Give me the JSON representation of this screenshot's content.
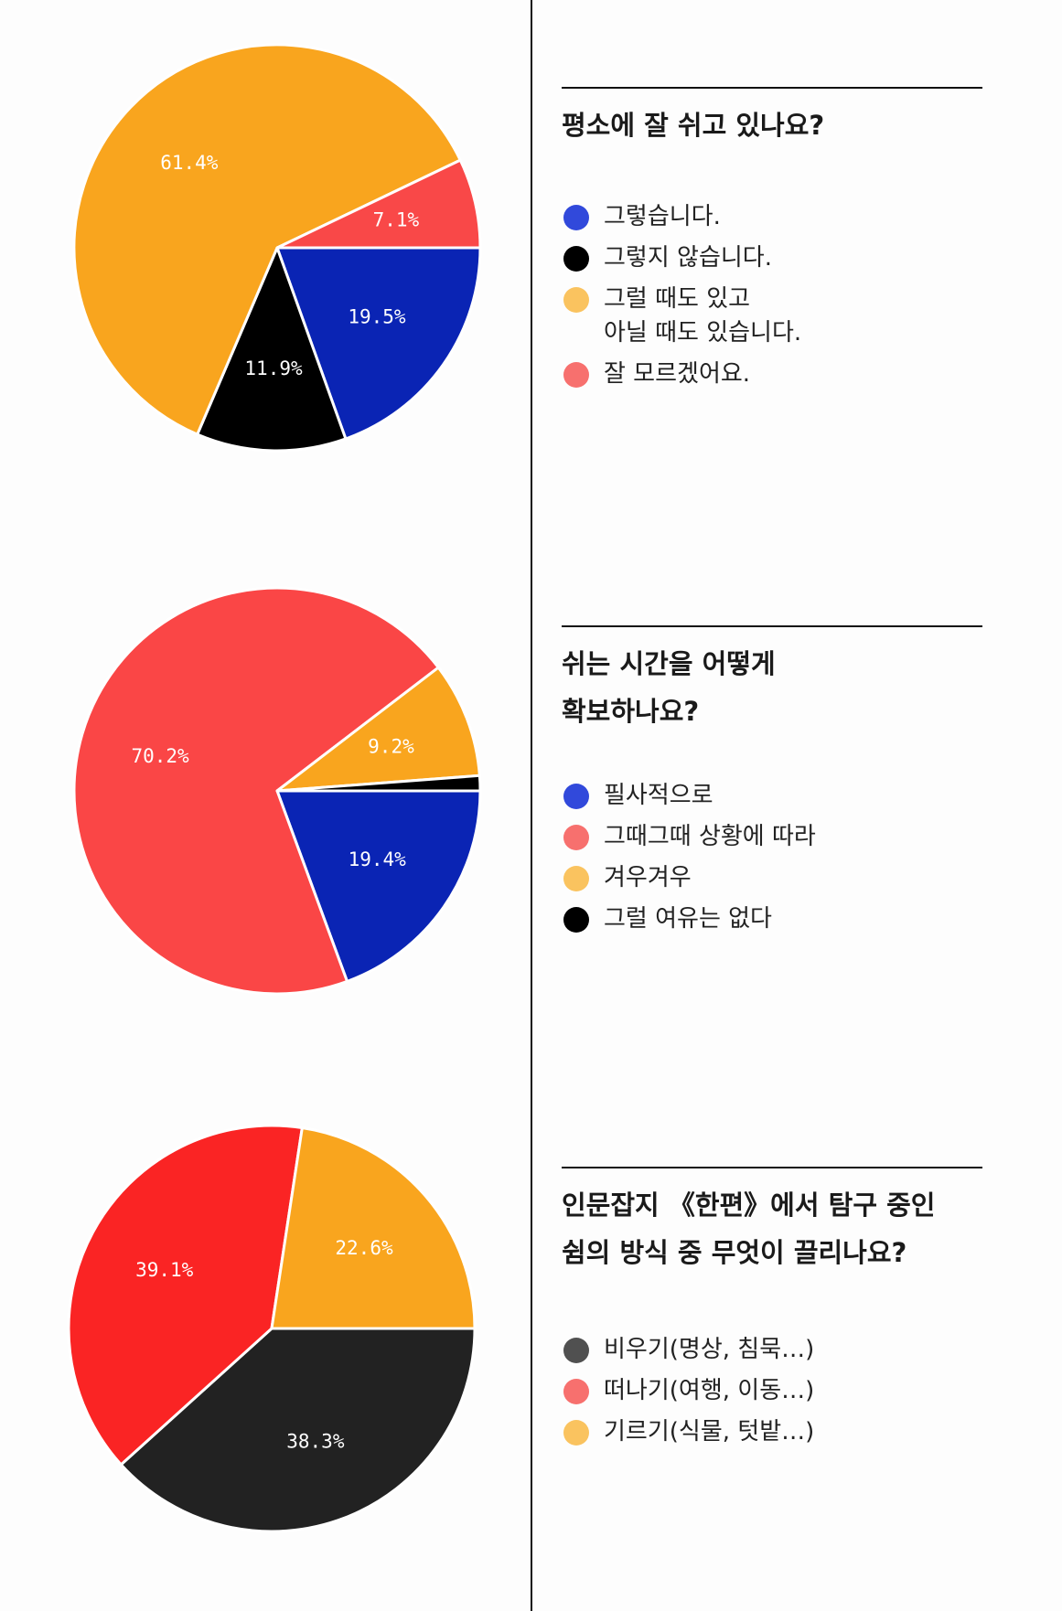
{
  "chart_data": [
    {
      "type": "pie",
      "title": "평소에 잘 쉬고 있나요?",
      "slices": [
        {
          "label": "그렇습니다.",
          "value": 19.5,
          "display": "19.5%",
          "color": "#0a24b4"
        },
        {
          "label": "그렇지 않습니다.",
          "value": 11.9,
          "display": "11.9%",
          "color": "#000000"
        },
        {
          "label": "그럴 때도 있고\n아닐 때도 있습니다.",
          "value": 61.4,
          "display": "61.4%",
          "color": "#f9a51e"
        },
        {
          "label": "잘 모르겠어요.",
          "value": 7.1,
          "display": "7.1%",
          "color": "#f94848"
        }
      ],
      "legend": [
        {
          "label": "그렇습니다.",
          "color": "#3149db"
        },
        {
          "label": "그렇지 않습니다.",
          "color": "#000000"
        },
        {
          "label": "그럴 때도 있고\n아닐 때도 있습니다.",
          "color": "#fac35f"
        },
        {
          "label": "잘 모르겠어요.",
          "color": "#f7706e"
        }
      ]
    },
    {
      "type": "pie",
      "title": "쉬는 시간을 어떻게\n확보하나요?",
      "slices": [
        {
          "label": "필사적으로",
          "value": 19.4,
          "display": "19.4%",
          "color": "#0a24b4"
        },
        {
          "label": "그때그때 상황에 따라",
          "value": 70.2,
          "display": "70.2%",
          "color": "#fa4646"
        },
        {
          "label": "겨우겨우",
          "value": 9.2,
          "display": "9.2%",
          "color": "#f9a51e"
        },
        {
          "label": "그럴 여유는 없다",
          "value": 1.2,
          "display": "",
          "color": "#000000"
        }
      ],
      "legend": [
        {
          "label": "필사적으로",
          "color": "#3149db"
        },
        {
          "label": "그때그때 상황에 따라",
          "color": "#f7706e"
        },
        {
          "label": "겨우겨우",
          "color": "#fac35f"
        },
        {
          "label": "그럴 여유는 없다",
          "color": "#000000"
        }
      ]
    },
    {
      "type": "pie",
      "title": "인문잡지 《한편》에서 탐구 중인\n쉼의 방식 중 무엇이 끌리나요?",
      "slices": [
        {
          "label": "비우기(명상, 침묵…)",
          "value": 38.3,
          "display": "38.3%",
          "color": "#222222"
        },
        {
          "label": "떠나기(여행, 이동…)",
          "value": 39.1,
          "display": "39.1%",
          "color": "#fa2424"
        },
        {
          "label": "기르기(식물, 텃밭…)",
          "value": 22.6,
          "display": "22.6%",
          "color": "#f9a51e"
        }
      ],
      "legend": [
        {
          "label": "비우기(명상, 침묵…)",
          "color": "#505050"
        },
        {
          "label": "떠나기(여행, 이동…)",
          "color": "#f7706e"
        },
        {
          "label": "기르기(식물, 텃밭…)",
          "color": "#fac35f"
        }
      ]
    }
  ]
}
